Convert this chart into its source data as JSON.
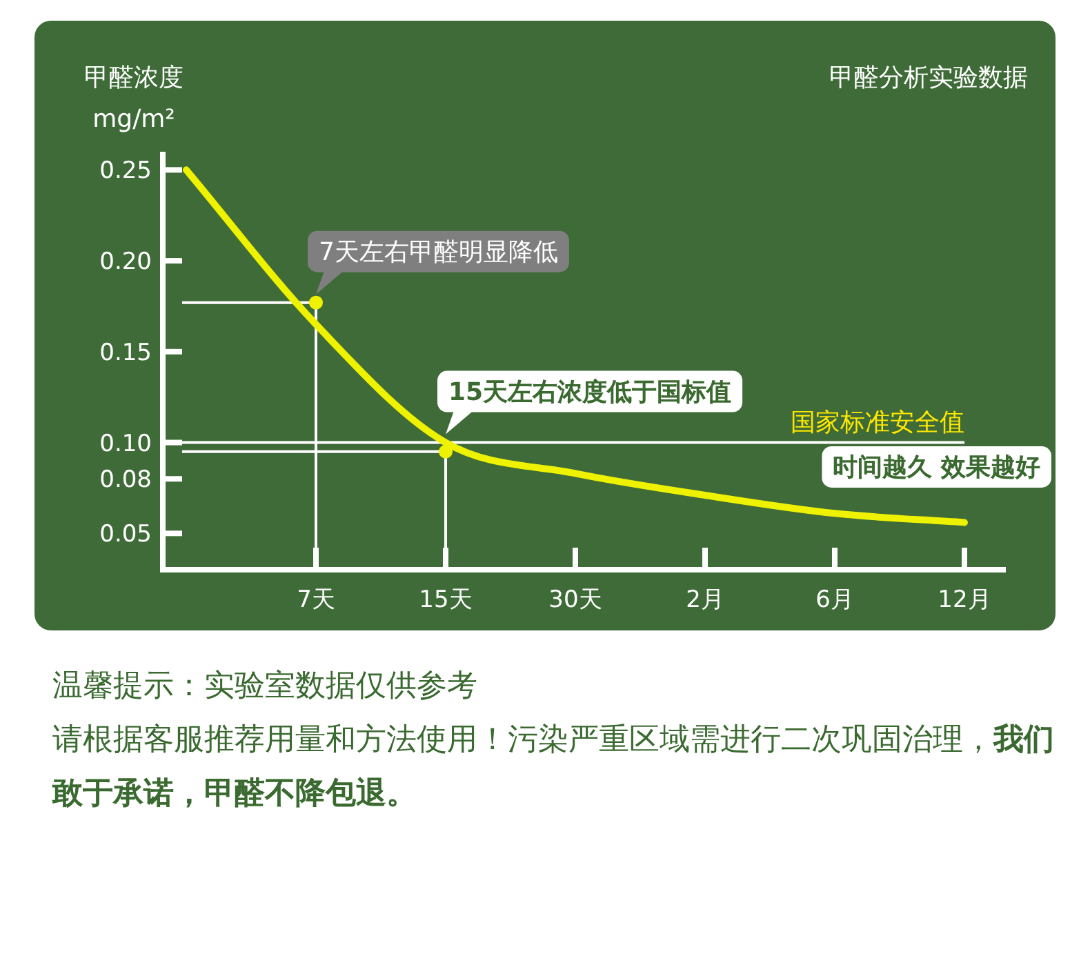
{
  "chart_data": {
    "type": "line",
    "title": "甲醛分析实验数据",
    "ylabel": "甲醛浓度 mg/m²",
    "categories": [
      null,
      "7天",
      "15天",
      "30天",
      "2月",
      "6月",
      "12月"
    ],
    "ylim": [
      0.03,
      0.26
    ],
    "yticks": [
      {
        "value": 0.05,
        "label": "0.05"
      },
      {
        "value": 0.08,
        "label": "0.08"
      },
      {
        "value": 0.1,
        "label": "0.10"
      },
      {
        "value": 0.15,
        "label": "0.15"
      },
      {
        "value": 0.2,
        "label": "0.20"
      },
      {
        "value": 0.25,
        "label": "0.25"
      }
    ],
    "series": [
      {
        "type": "line",
        "color": "#eef200",
        "values": [
          0.25,
          0.165,
          0.1,
          0.083,
          0.071,
          0.061,
          0.056
        ]
      },
      {
        "type": "scatter",
        "color": "#eef200",
        "marker": "circle",
        "x": [
          "7天",
          "15天"
        ],
        "values": [
          0.177,
          0.095
        ]
      }
    ],
    "ref_lines": [
      {
        "axis": "y",
        "value": 0.1,
        "label": "国家标准安全值",
        "color": "#ffffff"
      },
      {
        "axis": "y",
        "value": 0.177,
        "color": "#ffffff"
      },
      {
        "axis": "y",
        "value": 0.095,
        "color": "#ffffff"
      },
      {
        "axis": "x",
        "value": "7天",
        "color": "#ffffff"
      },
      {
        "axis": "x",
        "value": "15天",
        "color": "#ffffff"
      }
    ],
    "annotations": [
      {
        "text": "7天左右甲醛明显降低",
        "x": "7天",
        "y": 0.177
      },
      {
        "text": "15天左右浓度低于国标值",
        "x": "15天",
        "y": 0.1
      },
      "时间越久 效果越好",
      "温馨提示：实验室数据仅供参考",
      "请根据客服推荐用量和方法使用！污染严重区域需进行二次巩固治理，**我们敢于承诺，甲醛不降包退。**"
    ]
  }
}
